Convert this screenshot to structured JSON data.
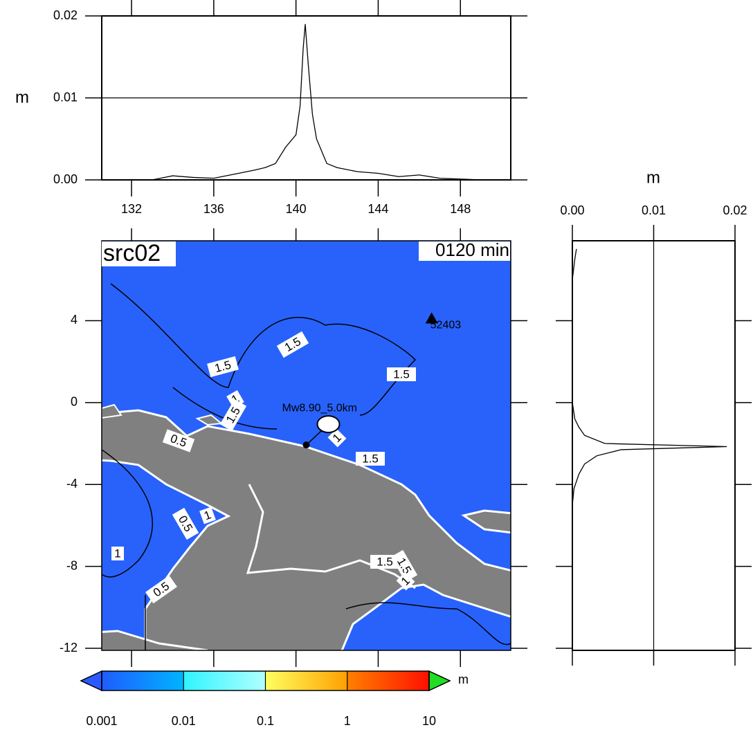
{
  "top_chart": {
    "type": "line",
    "ylabel": "m",
    "x": [
      131,
      132,
      133,
      134,
      135,
      136,
      137,
      138,
      138.5,
      139,
      139.5,
      140,
      140.2,
      140.35,
      140.45,
      140.6,
      140.8,
      141,
      141.5,
      142,
      143,
      144,
      145,
      146,
      147,
      148,
      149,
      150
    ],
    "values": [
      0,
      0,
      0,
      0.0005,
      0.0003,
      0.0002,
      0.0007,
      0.0012,
      0.0015,
      0.002,
      0.004,
      0.0055,
      0.009,
      0.016,
      0.019,
      0.014,
      0.008,
      0.005,
      0.002,
      0.0015,
      0.001,
      0.0008,
      0.0004,
      0.0006,
      0.0002,
      0.0001,
      0,
      0
    ],
    "color": "#000000",
    "xlim": [
      130.55,
      150.45
    ],
    "ylim": [
      0,
      0.02
    ],
    "xticks": [
      132,
      136,
      140,
      144,
      148
    ],
    "yticks": [
      {
        "value": 0,
        "label": "0.00"
      },
      {
        "value": 0.01,
        "label": "0.01"
      },
      {
        "value": 0.02,
        "label": "0.02"
      }
    ],
    "grid": true
  },
  "map": {
    "title": "src02",
    "time_label": "0120 min",
    "ylim": [
      -12.1,
      7.9
    ],
    "yticks": [
      4,
      0,
      -4,
      -8,
      -12
    ],
    "station": {
      "name": "52403",
      "lon": 146.6,
      "lat": 4.1
    },
    "epicenter": {
      "label": "Mw8.90_5.0km",
      "lon": 140.5,
      "lat": -2.07
    },
    "contour_labels": [
      "1.5",
      "1.5",
      "1.5",
      "1",
      "1.5",
      "0.5",
      "1",
      "1.5",
      "0.5",
      "1",
      "1",
      "0.5",
      "1.5",
      "1.5",
      "1"
    ]
  },
  "side_chart": {
    "type": "line",
    "xlabel": "m",
    "y": [
      7.5,
      7,
      6,
      0,
      -0.8,
      -1.2,
      -1.6,
      -2.0,
      -2.15,
      -2.3,
      -2.6,
      -3,
      -3.5,
      -4.2,
      -5,
      -12
    ],
    "values": [
      0.0005,
      0.0003,
      0,
      0,
      0.0003,
      0.0008,
      0.0015,
      0.004,
      0.019,
      0.006,
      0.003,
      0.0015,
      0.0008,
      0.0002,
      0,
      0
    ],
    "color": "#000000",
    "xlim": [
      0,
      0.02
    ],
    "xticks": [
      {
        "value": 0,
        "label": "0.00"
      },
      {
        "value": 0.01,
        "label": "0.01"
      },
      {
        "value": 0.02,
        "label": "0.02"
      }
    ],
    "grid": true
  },
  "colorbar": {
    "label": "m",
    "log": true,
    "clim": [
      0.001,
      10
    ],
    "ticks": [
      0.001,
      0.01,
      0.1,
      1,
      10
    ],
    "colors": [
      [
        "#1e5cff",
        "#00b4ff"
      ],
      [
        "#30f4ff",
        "#b0ffff"
      ],
      [
        "#ffff60",
        "#ffa000"
      ],
      [
        "#ff8000",
        "#ff1000"
      ]
    ],
    "under_color": "#2a5aff",
    "over_color": "#22dd22"
  }
}
